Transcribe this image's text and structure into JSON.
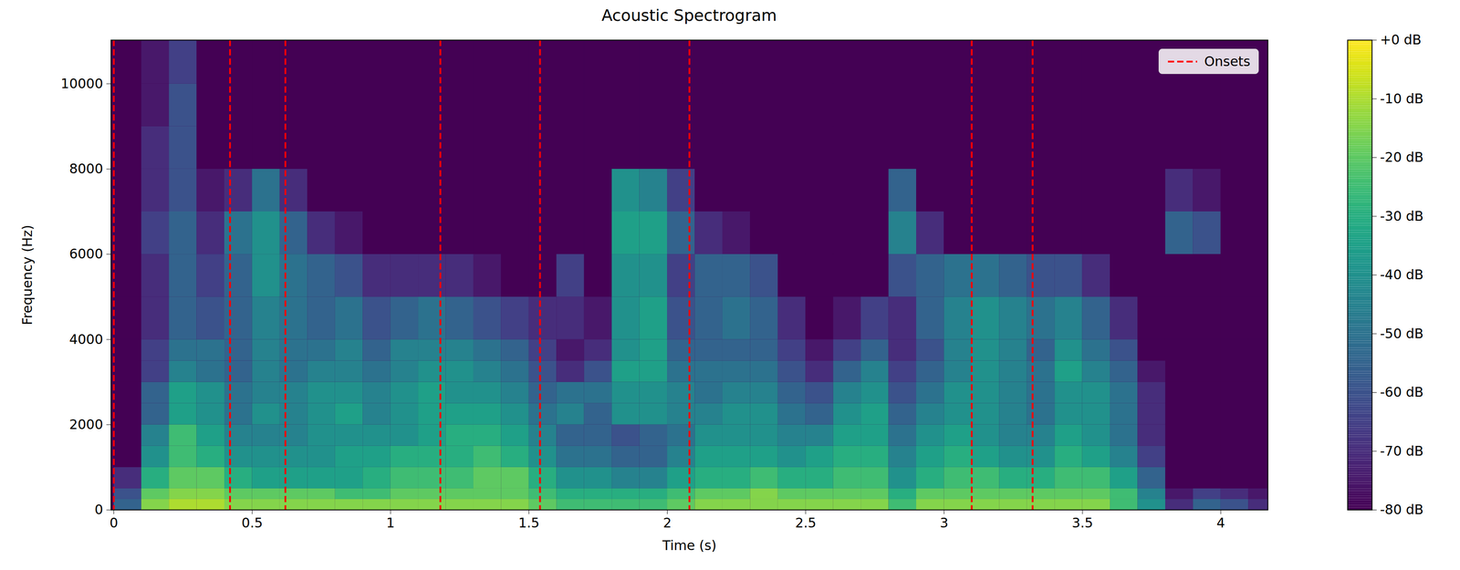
{
  "chart_data": {
    "type": "heatmap",
    "title": "Acoustic Spectrogram",
    "x_label": "Time (s)",
    "y_label": "Frequency (Hz)",
    "xlim": [
      -0.01,
      4.17
    ],
    "ylim": [
      0,
      11025
    ],
    "xticks": [
      0,
      0.5,
      1,
      1.5,
      2,
      2.5,
      3,
      3.5,
      4
    ],
    "yticks": [
      0,
      2000,
      4000,
      6000,
      8000,
      10000
    ],
    "x_edges": [
      0,
      0.1,
      0.2,
      0.3,
      0.4,
      0.5,
      0.6,
      0.7,
      0.8,
      0.9,
      1,
      1.1,
      1.2,
      1.3,
      1.4,
      1.5,
      1.6,
      1.7,
      1.8,
      1.9,
      2,
      2.1,
      2.2,
      2.3,
      2.4,
      2.5,
      2.6,
      2.7,
      2.8,
      2.9,
      3,
      3.1,
      3.2,
      3.3,
      3.4,
      3.5,
      3.6,
      3.7,
      3.8,
      3.9,
      4,
      4.1,
      4.2
    ],
    "y_edges": [
      0,
      250,
      500,
      1000,
      1500,
      2000,
      2500,
      3000,
      3500,
      4000,
      5000,
      6000,
      7000,
      8000,
      9000,
      10000,
      11025
    ],
    "cells": [
      [
        -55,
        -60,
        -70,
        -80,
        -80,
        -80,
        -80,
        -80,
        -80,
        -80,
        -80,
        -80,
        -80,
        -80,
        -80,
        -80
      ],
      [
        -15,
        -20,
        -30,
        -40,
        -45,
        -55,
        -55,
        -65,
        -65,
        -70,
        -70,
        -65,
        -70,
        -70,
        -75,
        -75
      ],
      [
        -10,
        -15,
        -20,
        -25,
        -25,
        -35,
        -35,
        -45,
        -50,
        -55,
        -55,
        -55,
        -60,
        -60,
        -60,
        -65
      ],
      [
        -10,
        -15,
        -20,
        -30,
        -35,
        -40,
        -40,
        -50,
        -50,
        -60,
        -65,
        -70,
        -75,
        -80,
        -80,
        -80
      ],
      [
        -15,
        -20,
        -30,
        -40,
        -45,
        -50,
        -50,
        -55,
        -55,
        -55,
        -55,
        -50,
        -70,
        -80,
        -80,
        -80
      ],
      [
        -15,
        -20,
        -35,
        -40,
        -45,
        -40,
        -45,
        -45,
        -45,
        -45,
        -40,
        -40,
        -50,
        -80,
        -80,
        -80
      ],
      [
        -15,
        -20,
        -35,
        -40,
        -45,
        -45,
        -45,
        -50,
        -50,
        -50,
        -50,
        -55,
        -70,
        -80,
        -80,
        -80
      ],
      [
        -15,
        -20,
        -35,
        -40,
        -40,
        -40,
        -40,
        -45,
        -50,
        -55,
        -55,
        -70,
        -80,
        -80,
        -80,
        -80
      ],
      [
        -15,
        -25,
        -35,
        -35,
        -40,
        -35,
        -40,
        -45,
        -45,
        -50,
        -60,
        -75,
        -80,
        -80,
        -80,
        -80
      ],
      [
        -15,
        -25,
        -30,
        -35,
        -40,
        -45,
        -45,
        -50,
        -55,
        -60,
        -70,
        -80,
        -80,
        -80,
        -80,
        -80
      ],
      [
        -15,
        -20,
        -25,
        -30,
        -40,
        -40,
        -40,
        -45,
        -45,
        -55,
        -70,
        -80,
        -80,
        -80,
        -80,
        -80
      ],
      [
        -15,
        -20,
        -25,
        -30,
        -35,
        -35,
        -35,
        -40,
        -45,
        -50,
        -70,
        -80,
        -80,
        -80,
        -80,
        -80
      ],
      [
        -15,
        -20,
        -25,
        -30,
        -30,
        -35,
        -40,
        -40,
        -45,
        -55,
        -70,
        -80,
        -80,
        -80,
        -80,
        -80
      ],
      [
        -15,
        -20,
        -20,
        -25,
        -30,
        -35,
        -40,
        -45,
        -50,
        -60,
        -75,
        -80,
        -80,
        -80,
        -80,
        -80
      ],
      [
        -15,
        -20,
        -20,
        -30,
        -35,
        -40,
        -45,
        -50,
        -55,
        -65,
        -80,
        -80,
        -80,
        -80,
        -80,
        -80
      ],
      [
        -20,
        -25,
        -30,
        -40,
        -45,
        -50,
        -55,
        -60,
        -65,
        -70,
        -80,
        -80,
        -80,
        -80,
        -80,
        -80
      ],
      [
        -25,
        -30,
        -40,
        -50,
        -55,
        -45,
        -50,
        -70,
        -75,
        -70,
        -65,
        -80,
        -80,
        -80,
        -80,
        -80
      ],
      [
        -25,
        -30,
        -40,
        -50,
        -55,
        -55,
        -50,
        -60,
        -70,
        -75,
        -80,
        -80,
        -80,
        -80,
        -80,
        -80
      ],
      [
        -25,
        -30,
        -45,
        -55,
        -60,
        -40,
        -40,
        -35,
        -40,
        -40,
        -40,
        -35,
        -40,
        -80,
        -80,
        -80
      ],
      [
        -25,
        -30,
        -45,
        -55,
        -55,
        -40,
        -40,
        -35,
        -35,
        -35,
        -40,
        -35,
        -45,
        -80,
        -80,
        -80
      ],
      [
        -20,
        -25,
        -35,
        -45,
        -50,
        -45,
        -45,
        -50,
        -55,
        -60,
        -65,
        -55,
        -65,
        -80,
        -80,
        -80
      ],
      [
        -15,
        -20,
        -30,
        -35,
        -40,
        -45,
        -50,
        -50,
        -55,
        -55,
        -55,
        -70,
        -80,
        -80,
        -80,
        -80
      ],
      [
        -15,
        -20,
        -30,
        -35,
        -40,
        -40,
        -45,
        -50,
        -55,
        -50,
        -55,
        -75,
        -80,
        -80,
        -80,
        -80
      ],
      [
        -15,
        -15,
        -25,
        -35,
        -40,
        -40,
        -45,
        -50,
        -55,
        -55,
        -60,
        -80,
        -80,
        -80,
        -80,
        -80
      ],
      [
        -15,
        -20,
        -30,
        -40,
        -45,
        -50,
        -55,
        -60,
        -65,
        -70,
        -80,
        -80,
        -80,
        -80,
        -80,
        -80
      ],
      [
        -15,
        -20,
        -30,
        -35,
        -45,
        -55,
        -60,
        -70,
        -75,
        -80,
        -80,
        -80,
        -80,
        -80,
        -80,
        -80
      ],
      [
        -15,
        -20,
        -25,
        -30,
        -35,
        -40,
        -45,
        -55,
        -65,
        -75,
        -80,
        -80,
        -80,
        -80,
        -80,
        -80
      ],
      [
        -15,
        -20,
        -25,
        -30,
        -35,
        -35,
        -40,
        -45,
        -55,
        -65,
        -80,
        -80,
        -80,
        -80,
        -80,
        -80
      ],
      [
        -25,
        -30,
        -40,
        -45,
        -50,
        -55,
        -60,
        -65,
        -70,
        -70,
        -60,
        -45,
        -55,
        -80,
        -80,
        -80
      ],
      [
        -15,
        -20,
        -30,
        -35,
        -40,
        -45,
        -50,
        -55,
        -60,
        -55,
        -55,
        -70,
        -80,
        -80,
        -80,
        -80
      ],
      [
        -15,
        -20,
        -25,
        -30,
        -35,
        -40,
        -40,
        -45,
        -45,
        -45,
        -50,
        -80,
        -80,
        -80,
        -80,
        -80
      ],
      [
        -15,
        -20,
        -25,
        -35,
        -40,
        -40,
        -40,
        -40,
        -40,
        -40,
        -50,
        -80,
        -80,
        -80,
        -80,
        -80
      ],
      [
        -15,
        -20,
        -30,
        -40,
        -45,
        -45,
        -45,
        -45,
        -45,
        -45,
        -55,
        -80,
        -80,
        -80,
        -80,
        -80
      ],
      [
        -15,
        -20,
        -30,
        -40,
        -45,
        -50,
        -50,
        -50,
        -55,
        -50,
        -60,
        -80,
        -80,
        -80,
        -80,
        -80
      ],
      [
        -15,
        -20,
        -25,
        -30,
        -35,
        -40,
        -40,
        -35,
        -40,
        -45,
        -60,
        -80,
        -80,
        -80,
        -80,
        -80
      ],
      [
        -15,
        -20,
        -25,
        -35,
        -40,
        -40,
        -40,
        -45,
        -50,
        -55,
        -70,
        -80,
        -80,
        -80,
        -80,
        -80
      ],
      [
        -25,
        -25,
        -35,
        -45,
        -50,
        -50,
        -50,
        -55,
        -60,
        -70,
        -80,
        -80,
        -80,
        -80,
        -80,
        -80
      ],
      [
        -40,
        -45,
        -55,
        -65,
        -70,
        -70,
        -70,
        -75,
        -80,
        -80,
        -80,
        -80,
        -80,
        -80,
        -80,
        -80
      ],
      [
        -70,
        -75,
        -80,
        -80,
        -80,
        -80,
        -80,
        -80,
        -80,
        -80,
        -80,
        -55,
        -70,
        -80,
        -80,
        -80
      ],
      [
        -55,
        -65,
        -80,
        -80,
        -80,
        -80,
        -80,
        -80,
        -80,
        -80,
        -80,
        -60,
        -75,
        -80,
        -80,
        -80
      ],
      [
        -60,
        -70,
        -80,
        -80,
        -80,
        -80,
        -80,
        -80,
        -80,
        -80,
        -80,
        -80,
        -80,
        -80,
        -80,
        -80
      ],
      [
        -70,
        -75,
        -80,
        -80,
        -80,
        -80,
        -80,
        -80,
        -80,
        -80,
        -80,
        -80,
        -80,
        -80,
        -80,
        -80
      ]
    ],
    "colorbar": {
      "range": [
        -80,
        0
      ],
      "ticks": [
        {
          "value": 0,
          "label": "+0 dB"
        },
        {
          "value": -10,
          "label": "-10 dB"
        },
        {
          "value": -20,
          "label": "-20 dB"
        },
        {
          "value": -30,
          "label": "-30 dB"
        },
        {
          "value": -40,
          "label": "-40 dB"
        },
        {
          "value": -50,
          "label": "-50 dB"
        },
        {
          "value": -60,
          "label": "-60 dB"
        },
        {
          "value": -70,
          "label": "-70 dB"
        },
        {
          "value": -80,
          "label": "-80 dB"
        }
      ]
    },
    "series": [
      {
        "name": "Onsets",
        "color": "red",
        "line_style": "dashed",
        "values": [
          0,
          0.42,
          0.62,
          1.18,
          1.54,
          2.08,
          3.1,
          3.32
        ]
      }
    ],
    "legend": "upper right"
  }
}
